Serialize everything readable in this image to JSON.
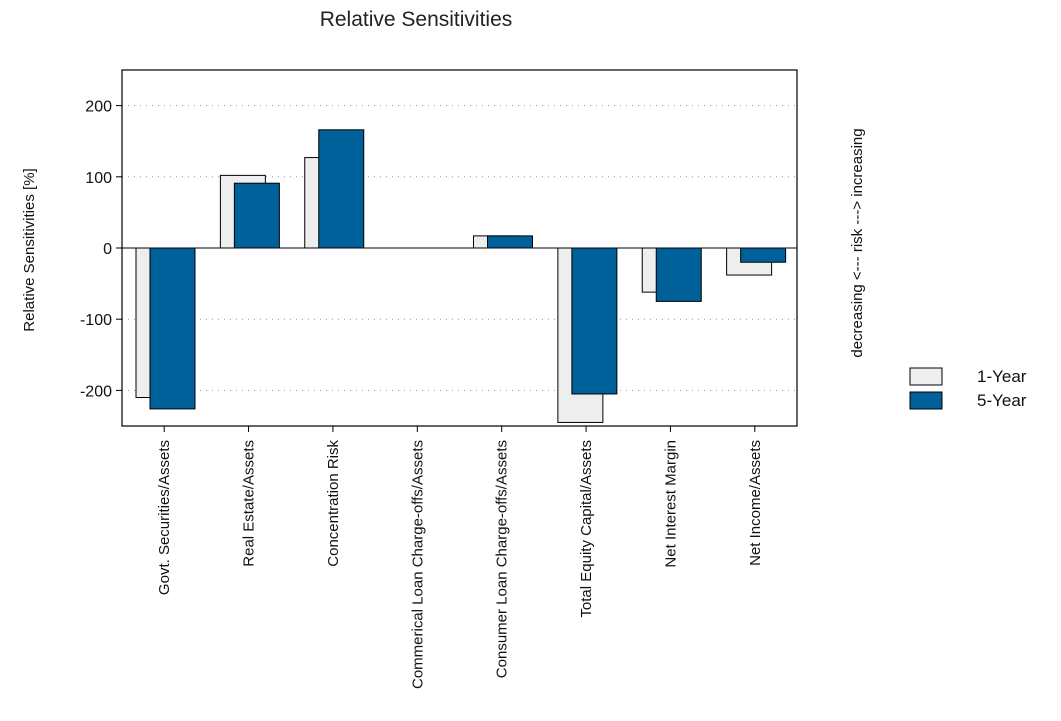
{
  "chart_data": {
    "type": "bar",
    "title": "Relative Sensitivities",
    "ylabel": "Relative Sensitivities [%]",
    "y2label": "decreasing <--- risk ---> increasing",
    "categories": [
      "Govt. Securities/Assets",
      "Real Estate/Assets",
      "Concentration Risk",
      "Commerical Loan Charge-offs/Assets",
      "Consumer Loan Charge-offs/Assets",
      "Total Equity Capital/Assets",
      "Net Interest Margin",
      "Net Income/Assets"
    ],
    "series": [
      {
        "name": "1-Year",
        "color": "#eeeeee",
        "values": [
          -210,
          102,
          127,
          0,
          17,
          -245,
          -62,
          -38
        ]
      },
      {
        "name": "5-Year",
        "color": "#00609a",
        "values": [
          -226,
          91,
          166,
          0,
          17,
          -205,
          -75,
          -20
        ]
      }
    ],
    "ylim": [
      -250,
      250
    ],
    "yticks": [
      200,
      100,
      0,
      -100,
      -200
    ],
    "ytick_labels": [
      "200",
      "100",
      "0",
      "-100",
      "-200"
    ],
    "grid": true,
    "legend": "right"
  }
}
